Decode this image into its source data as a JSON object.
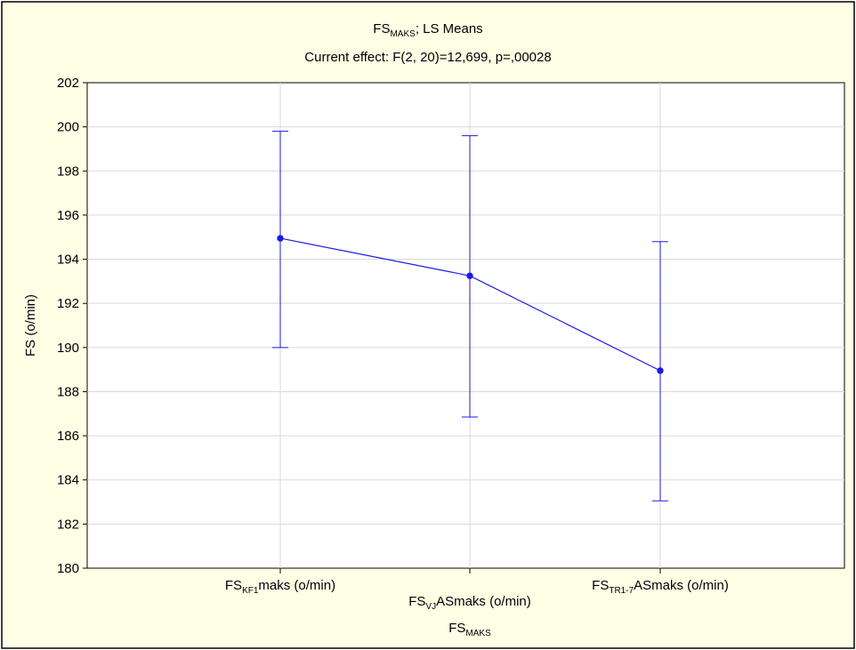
{
  "chart_data": {
    "type": "line",
    "title": {
      "main": "FS",
      "sub": "MAKS",
      "rest": "; LS Means"
    },
    "subtitle": "Current effect: F(2, 20)=12,699, p=,00028",
    "ylabel": "FS (o/min)",
    "xlabel": {
      "main": "FS",
      "sub": "MAKS"
    },
    "ylim": [
      180,
      202
    ],
    "yticks": [
      "180",
      "182",
      "184",
      "186",
      "188",
      "190",
      "192",
      "194",
      "196",
      "198",
      "200",
      "202"
    ],
    "grid": true,
    "categories": [
      {
        "main": "FS",
        "sub": "KF1",
        "rest": "maks (o/min)"
      },
      {
        "main": "FS",
        "sub": "VJ",
        "rest": "ASmaks (o/min)"
      },
      {
        "main": "FS",
        "sub": "TR1-7",
        "rest": "ASmaks (o/min)"
      }
    ],
    "series": [
      {
        "values": [
          194.95,
          193.25,
          188.95
        ],
        "error_low": [
          190.0,
          186.85,
          183.05
        ],
        "error_high": [
          199.8,
          199.6,
          194.8
        ]
      }
    ],
    "colors": {
      "series": "#1a1ae6",
      "grid": "#d9d9d9",
      "panel": "#ffffe6"
    }
  }
}
